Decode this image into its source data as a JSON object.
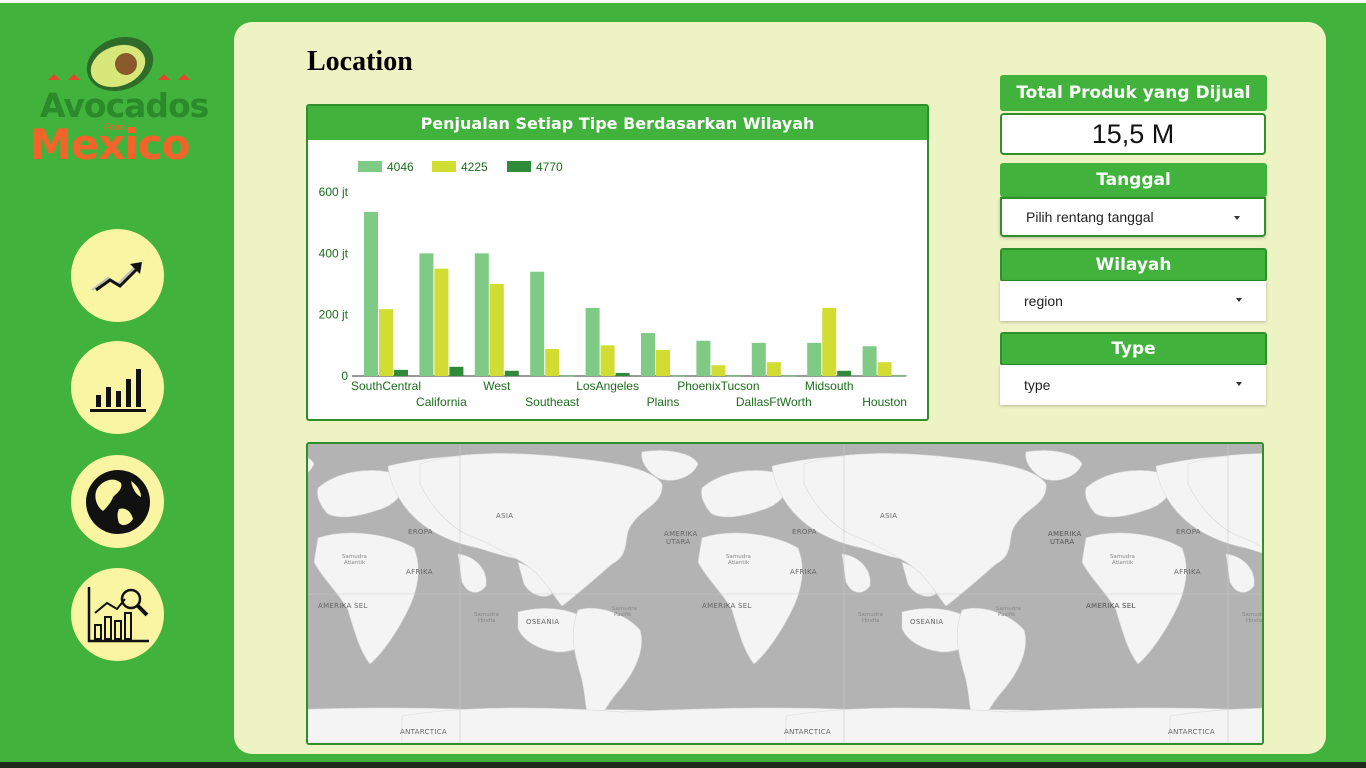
{
  "brand": {
    "logo_line1": "Avocados",
    "logo_line2": "Mexico",
    "logo_small": "From",
    "colors": {
      "sidebar_green": "#41b23b",
      "panel_cream": "#eef3c4",
      "nav_yellow": "#faf5a2",
      "logo_orange": "#f4632a"
    }
  },
  "sidebar": {
    "items": [
      {
        "icon": "trend-up-icon"
      },
      {
        "icon": "bar-chart-icon"
      },
      {
        "icon": "globe-icon"
      },
      {
        "icon": "analytics-search-icon"
      }
    ]
  },
  "page": {
    "title": "Location"
  },
  "chart": {
    "title": "Penjualan Setiap Tipe Berdasarkan Wilayah"
  },
  "chart_data": {
    "type": "bar",
    "title": "Penjualan Setiap Tipe Berdasarkan Wilayah",
    "categories": [
      "SouthCentral",
      "California",
      "West",
      "Southeast",
      "LosAngeles",
      "Plains",
      "PhoenixTucson",
      "DallasFtWorth",
      "Midsouth",
      "Houston"
    ],
    "series": [
      {
        "name": "4046",
        "color": "#7fcb85",
        "values": [
          535,
          400,
          400,
          340,
          222,
          140,
          115,
          108,
          108,
          97
        ]
      },
      {
        "name": "4225",
        "color": "#d2dd34",
        "values": [
          218,
          350,
          300,
          88,
          100,
          85,
          35,
          45,
          222,
          45
        ]
      },
      {
        "name": "4770",
        "color": "#2f8a3a",
        "values": [
          20,
          30,
          17,
          2,
          10,
          2,
          2,
          2,
          17,
          2
        ]
      }
    ],
    "yticks": [
      "0",
      "200 jt",
      "400 jt",
      "600 jt"
    ],
    "ylim": [
      0,
      600
    ],
    "legend": "top-left",
    "grid": false
  },
  "controls": {
    "total": {
      "label": "Total Produk yang Dijual",
      "value": "15,5 M"
    },
    "date": {
      "label": "Tanggal",
      "value": "Pilih rentang tanggal"
    },
    "region": {
      "label": "Wilayah",
      "value": "region"
    },
    "type": {
      "label": "Type",
      "value": "type"
    }
  },
  "map": {
    "labels": {
      "asia": "ASIA",
      "europe": "EROPA",
      "africa": "AFRIKA",
      "na": "AMERIKA UTARA",
      "na1": "AMERIKA",
      "na2": "UTARA",
      "sa": "AMERIKA SEL",
      "oceania": "OSEANIA",
      "antarctica": "ANTARCTICA",
      "atlantic1": "Samudra",
      "atlantic2": "Atlantik",
      "indian1": "Samudra",
      "indian2": "Hindia",
      "pacific1": "Samudra",
      "pacific2": "Pasifik"
    }
  }
}
